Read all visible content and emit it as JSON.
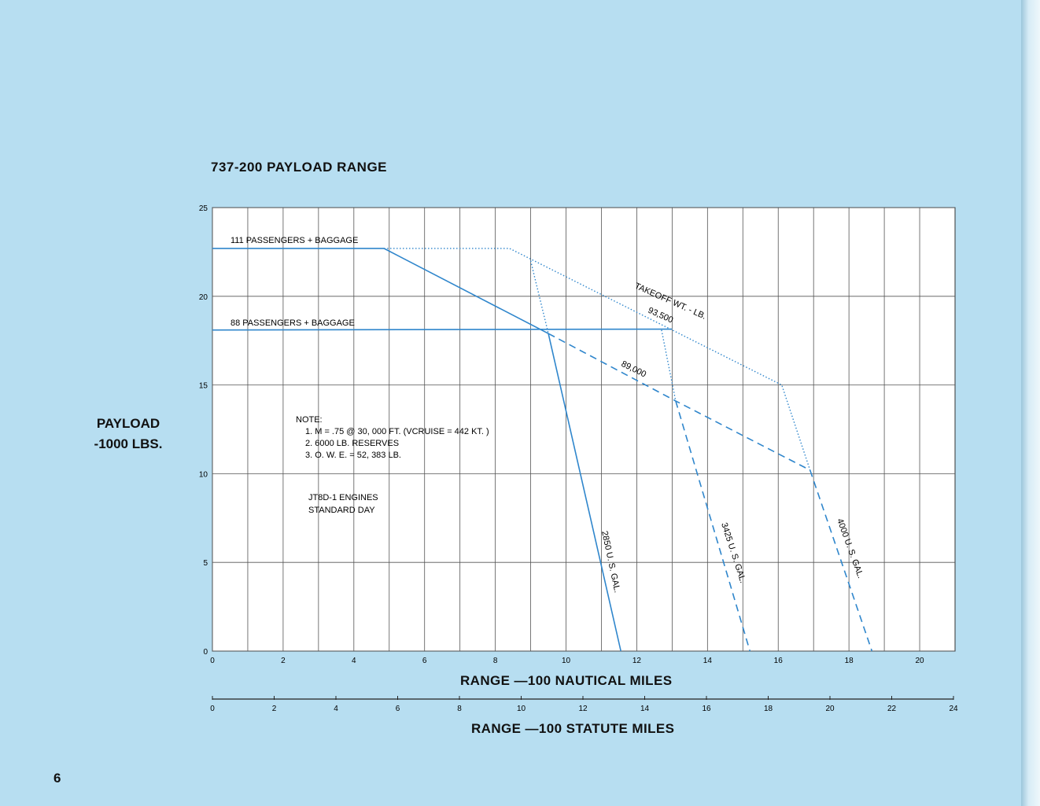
{
  "page": {
    "number": "6"
  },
  "chart_data": {
    "type": "line",
    "title": "737-200  PAYLOAD RANGE",
    "ylabel": "PAYLOAD -1000 LBS.",
    "xlabel": "RANGE —100  NAUTICAL MILES",
    "x2label": "RANGE —100 STATUTE MILES",
    "xlim": [
      0,
      21
    ],
    "ylim": [
      0,
      25
    ],
    "x_ticks": [
      "0",
      "2",
      "4",
      "6",
      "8",
      "10",
      "12",
      "14",
      "16",
      "18",
      "20"
    ],
    "y_ticks": [
      "0",
      "5",
      "10",
      "15",
      "20",
      "25"
    ],
    "x2_ticks": [
      "0",
      "2",
      "4",
      "6",
      "8",
      "10",
      "12",
      "14",
      "16",
      "18",
      "20",
      "22",
      "24"
    ],
    "x2lim": [
      0,
      24
    ],
    "grid": true,
    "series": [
      {
        "name": "111 PASSENGERS + BAGGAGE",
        "style": "solid",
        "color": "#2f86cc",
        "x": [
          0,
          4.85
        ],
        "y": [
          22.7,
          22.7
        ]
      },
      {
        "name": "88 PASSENGERS + BAGGAGE",
        "style": "solid",
        "color": "#2f86cc",
        "x": [
          0,
          13.0
        ],
        "y": [
          18.1,
          18.15
        ]
      },
      {
        "name": "2850 U.S. GAL.",
        "style": "solid",
        "color": "#2f86cc",
        "x": [
          4.85,
          9.5,
          11.55
        ],
        "y": [
          22.7,
          17.9,
          0
        ]
      },
      {
        "name": "89,000",
        "style": "dashed",
        "color": "#2f86cc",
        "x": [
          9.5,
          13.1,
          16.9
        ],
        "y": [
          17.9,
          14.1,
          10.2
        ]
      },
      {
        "name": "3425 U.S. GAL.",
        "style": "dashed",
        "color": "#2f86cc",
        "x": [
          13.1,
          15.2
        ],
        "y": [
          14.1,
          0
        ]
      },
      {
        "name": "4000 U.S. GAL.",
        "style": "dashed",
        "color": "#2f86cc",
        "x": [
          16.9,
          18.65
        ],
        "y": [
          10.2,
          0
        ]
      },
      {
        "name": "TAKEOFF WT. - LB. 93,500",
        "style": "dotted",
        "color": "#2f86cc",
        "x": [
          4.85,
          8.4,
          16.1,
          16.9
        ],
        "y": [
          22.7,
          22.7,
          15.0,
          10.2
        ]
      },
      {
        "name": "",
        "style": "dotted",
        "color": "#2f86cc",
        "x": [
          9.0,
          9.5
        ],
        "y": [
          22.0,
          17.9
        ]
      },
      {
        "name": "",
        "style": "dotted",
        "color": "#2f86cc",
        "x": [
          12.7,
          13.1
        ],
        "y": [
          18.1,
          14.1
        ]
      }
    ],
    "annotations": {
      "pass111": "111  PASSENGERS + BAGGAGE",
      "pass88": "88  PASSENGERS + BAGGAGE",
      "takeoff": "TAKEOFF WT.  - LB.",
      "w93500": "93,500",
      "w89000": "89,000",
      "gal2850": "2850 U. S.  GAL.",
      "gal3425": "3425 U. S. GAL.",
      "gal4000": "4000 U. S. GAL.",
      "note_title": "NOTE:",
      "note1": "1.   M = .75 @ 30, 000 FT.  (VCRUISE = 442 KT. )",
      "note2": "2.   6000 LB.  RESERVES",
      "note3": "3.   O. W. E.  = 52, 383 LB.",
      "engines": "JT8D-1 ENGINES",
      "day": "STANDARD DAY"
    }
  }
}
